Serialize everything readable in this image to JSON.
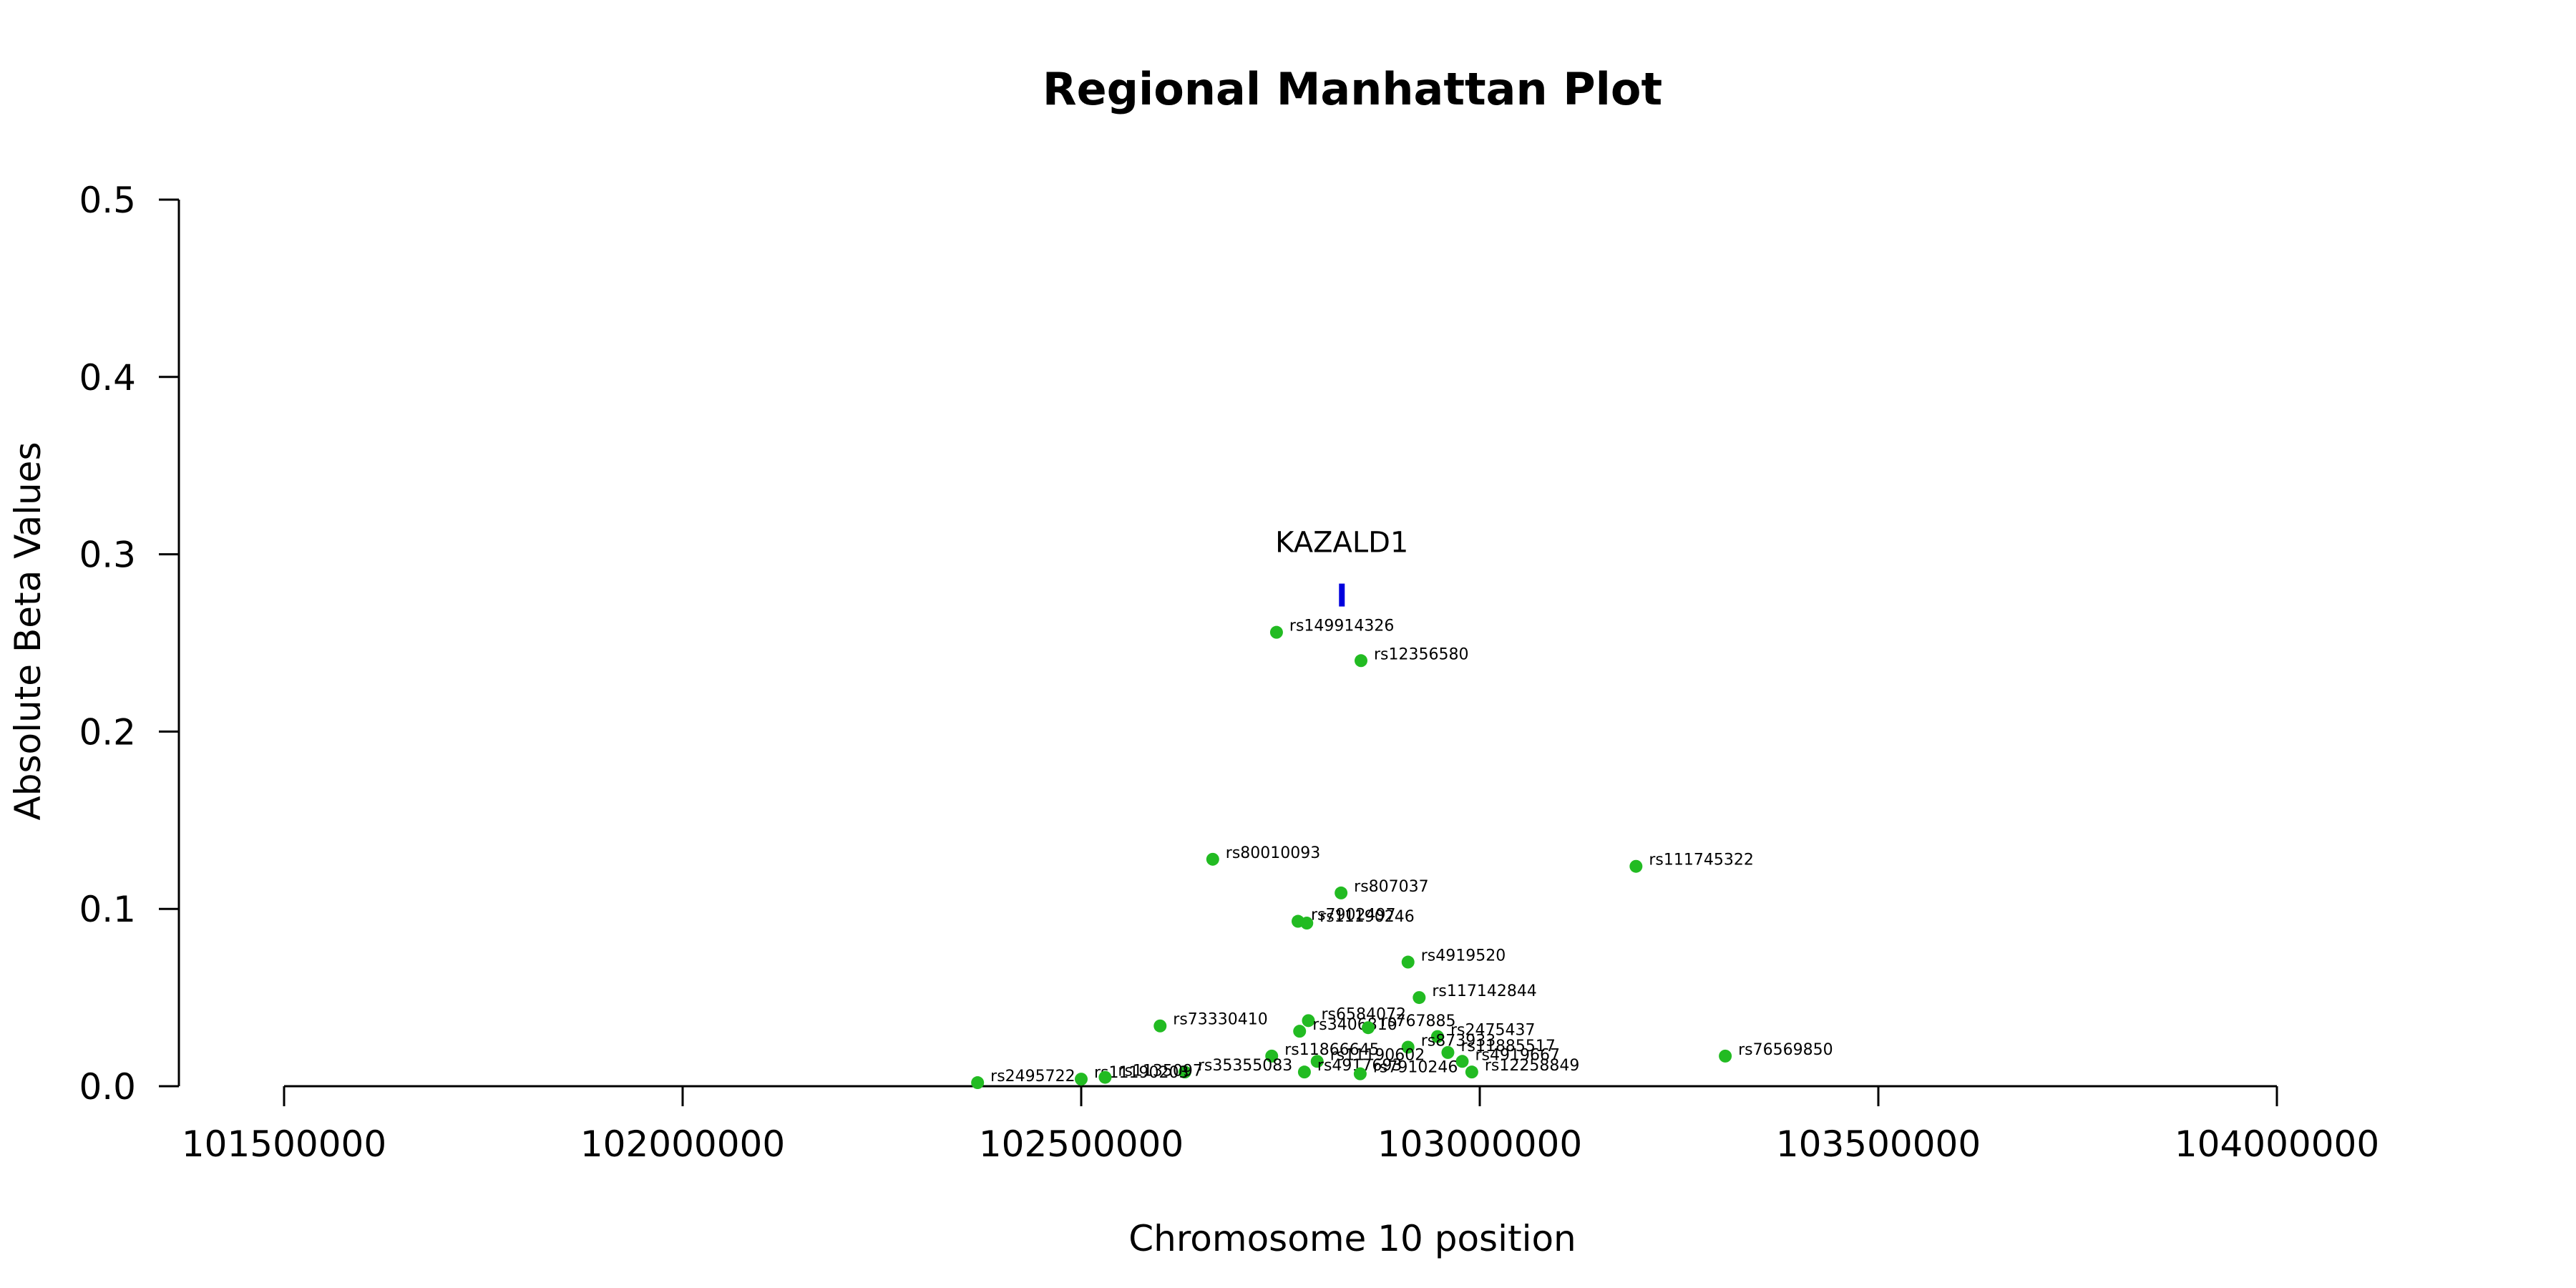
{
  "chart_data": {
    "type": "scatter",
    "title": "Regional Manhattan Plot",
    "xlabel": "Chromosome 10 position",
    "ylabel": "Absolute Beta Values",
    "xlim": [
      101500000,
      104000000
    ],
    "ylim": [
      0,
      0.5
    ],
    "x_ticks": [
      101500000,
      102000000,
      102500000,
      103000000,
      103500000,
      104000000
    ],
    "x_tick_labels": [
      "101500000",
      "102000000",
      "102500000",
      "103000000",
      "103500000",
      "104000000"
    ],
    "y_ticks": [
      0,
      0.1,
      0.2,
      0.3,
      0.4,
      0.5
    ],
    "y_tick_labels": [
      "0.0",
      "0.1",
      "0.2",
      "0.3",
      "0.4",
      "0.5"
    ],
    "point_color": "#22bb22",
    "gene_color": "#0000dd",
    "grid": false,
    "legend": "none",
    "genes": [
      {
        "name": "KAZALD1",
        "x": 102827000,
        "y": 0.277
      }
    ],
    "points": [
      {
        "label": "rs149914326",
        "x": 102745000,
        "y": 0.256
      },
      {
        "label": "rs12356580",
        "x": 102851000,
        "y": 0.24
      },
      {
        "label": "rs80010093",
        "x": 102665000,
        "y": 0.128
      },
      {
        "label": "rs111745322",
        "x": 103196000,
        "y": 0.124
      },
      {
        "label": "rs807037",
        "x": 102826000,
        "y": 0.109
      },
      {
        "label": "rs7902497",
        "x": 102772000,
        "y": 0.093
      },
      {
        "label": "rs11190246",
        "x": 102783000,
        "y": 0.092
      },
      {
        "label": "rs4919520",
        "x": 102910000,
        "y": 0.07
      },
      {
        "label": "rs117142844",
        "x": 102924000,
        "y": 0.05
      },
      {
        "label": "rs6584072",
        "x": 102785000,
        "y": 0.037
      },
      {
        "label": "rs3406810",
        "x": 102774000,
        "y": 0.031
      },
      {
        "label": "rs767885",
        "x": 102860000,
        "y": 0.033
      },
      {
        "label": "rs2475437",
        "x": 102947000,
        "y": 0.028
      },
      {
        "label": "rs73330410",
        "x": 102599000,
        "y": 0.034
      },
      {
        "label": "rs76569850",
        "x": 103308000,
        "y": 0.017
      },
      {
        "label": "rs11866645",
        "x": 102739000,
        "y": 0.017
      },
      {
        "label": "rs873933",
        "x": 102910000,
        "y": 0.022
      },
      {
        "label": "rs11885517",
        "x": 102960000,
        "y": 0.019
      },
      {
        "label": "rs4919667",
        "x": 102978000,
        "y": 0.014
      },
      {
        "label": "rs35355083",
        "x": 102630000,
        "y": 0.008
      },
      {
        "label": "rs12258849",
        "x": 102990000,
        "y": 0.008
      },
      {
        "label": "rs11190602",
        "x": 102796000,
        "y": 0.014
      },
      {
        "label": "rs2495722",
        "x": 102370000,
        "y": 0.002
      },
      {
        "label": "rs11190203",
        "x": 102500000,
        "y": 0.004
      },
      {
        "label": "rs1135097",
        "x": 102530000,
        "y": 0.005
      },
      {
        "label": "rs4917693",
        "x": 102780000,
        "y": 0.008
      },
      {
        "label": "rs7910246",
        "x": 102850000,
        "y": 0.007
      }
    ]
  }
}
